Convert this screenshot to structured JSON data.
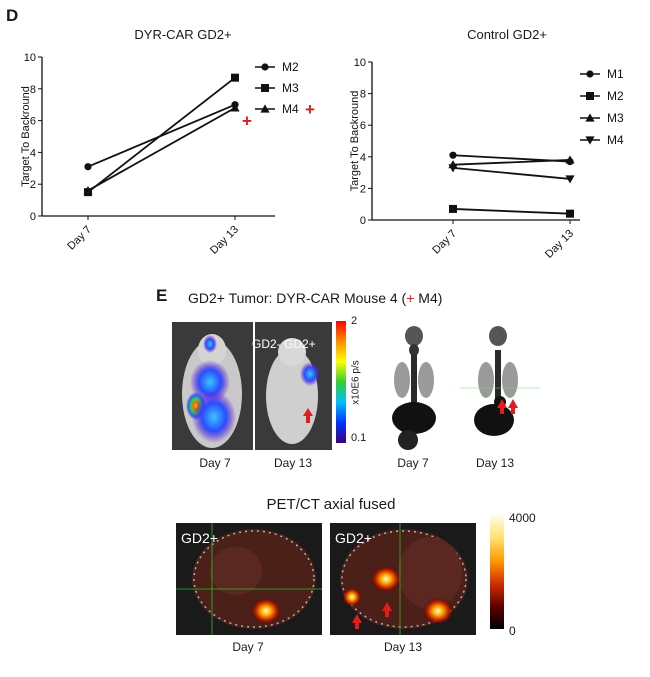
{
  "panel_d": {
    "letter": "D"
  },
  "panel_e": {
    "letter": "E",
    "title_prefix": "GD2+ Tumor: DYR-CAR Mouse 4 (",
    "title_plus": "+",
    "title_suffix": " M4)",
    "bli": {
      "day7_label": "Day 7",
      "day13_label": "Day 13",
      "overlay_text": "GD2- GD2+",
      "scale_max": "2",
      "scale_min": "0.1",
      "scale_unit": "x10E6 p/s"
    },
    "pet": {
      "day7_label": "Day 7",
      "day13_label": "Day 13"
    },
    "axial": {
      "title": "PET/CT axial fused",
      "day7_tag": "GD2+",
      "day13_tag": "GD2+",
      "day7_label": "Day 7",
      "day13_label": "Day 13",
      "scale_max": "4000",
      "scale_min": "0"
    },
    "colors": {
      "arrow": "#e21c1c"
    }
  },
  "chart_data": [
    {
      "type": "line",
      "title": "DYR-CAR GD2+",
      "ylabel": "Target To Backround",
      "categories": [
        "Day 7",
        "Day 13"
      ],
      "ylim": [
        0,
        10
      ],
      "yticks": [
        "0",
        "2",
        "4",
        "6",
        "8",
        "10"
      ],
      "legend_position": "right",
      "series": [
        {
          "name": "M2",
          "marker": "circle",
          "values": [
            3.1,
            7.0
          ]
        },
        {
          "name": "M3",
          "marker": "square",
          "values": [
            1.5,
            8.7
          ]
        },
        {
          "name": "M4",
          "marker": "triangle",
          "values": [
            1.6,
            6.8
          ]
        }
      ],
      "annotations": [
        {
          "text": "+",
          "color": "#e21c1c",
          "series": "M4",
          "value": 6.0
        }
      ]
    },
    {
      "type": "line",
      "title": "Control GD2+",
      "ylabel": "Target To Backround",
      "categories": [
        "Day 7",
        "Day 13"
      ],
      "ylim": [
        0,
        10
      ],
      "yticks": [
        "0",
        "2",
        "4",
        "6",
        "8",
        "10"
      ],
      "legend_position": "right",
      "series": [
        {
          "name": "M1",
          "marker": "circle",
          "values": [
            4.1,
            3.7
          ]
        },
        {
          "name": "M2",
          "marker": "square",
          "values": [
            0.7,
            0.4
          ]
        },
        {
          "name": "M3",
          "marker": "triangle",
          "values": [
            3.5,
            3.8
          ]
        },
        {
          "name": "M4",
          "marker": "triangle-down",
          "values": [
            3.3,
            2.6
          ]
        }
      ]
    }
  ]
}
